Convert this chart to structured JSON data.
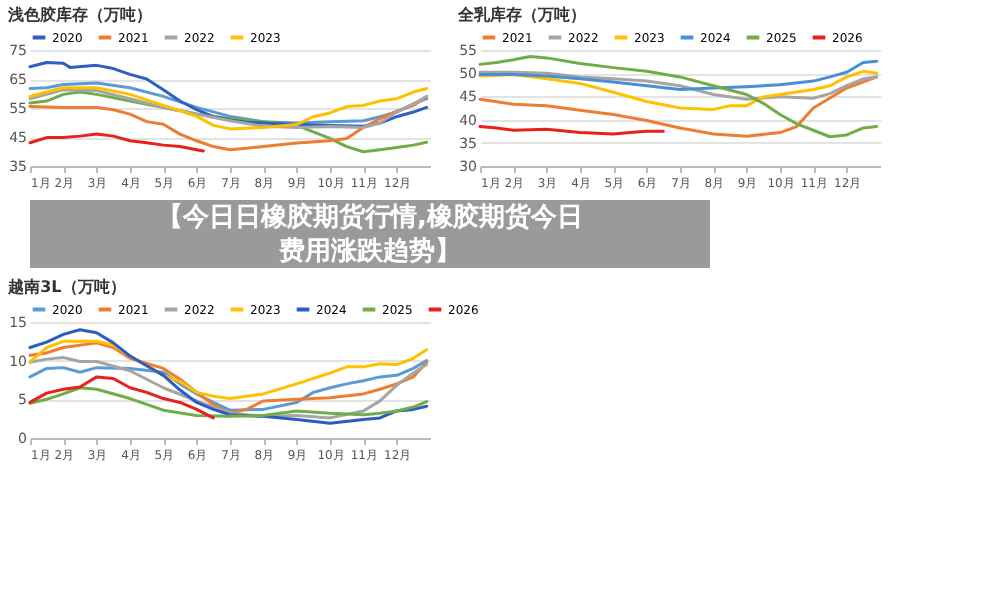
{
  "chart_data": [
    {
      "type": "line",
      "title": "浅色胶库存（万吨）",
      "legend": "top",
      "grid": "y",
      "ylim": [
        35,
        75
      ],
      "yticks": [
        35,
        45,
        55,
        65,
        75
      ],
      "xlim": [
        1,
        13
      ],
      "xticks": [
        {
          "value": 1,
          "label": "1月"
        },
        {
          "value": 2,
          "label": "2月"
        },
        {
          "value": 3,
          "label": "3月"
        },
        {
          "value": 4,
          "label": "4月"
        },
        {
          "value": 5,
          "label": "5月"
        },
        {
          "value": 6,
          "label": "6月"
        },
        {
          "value": 7,
          "label": "7月"
        },
        {
          "value": 8,
          "label": "8月"
        },
        {
          "value": 9,
          "label": "9月"
        },
        {
          "value": 10,
          "label": "10月"
        },
        {
          "value": 11,
          "label": "11月"
        },
        {
          "value": 12,
          "label": "12月"
        }
      ],
      "series": [
        {
          "name": "2020",
          "color": "#2e5fc1",
          "x": [
            1,
            1.5,
            2,
            2.2,
            3,
            3.5,
            4,
            4.5,
            5,
            5.5,
            6,
            6.5,
            7,
            7.5,
            8,
            9,
            10,
            11,
            11.5,
            12,
            12.5,
            12.9
          ],
          "values": [
            69.2,
            70.7,
            70.4,
            69,
            69.7,
            68.6,
            66.6,
            65,
            61.3,
            57.4,
            54.4,
            52,
            50.9,
            50.1,
            49.8,
            49.3,
            49,
            48.7,
            49.8,
            52,
            53.6,
            55.2
          ]
        },
        {
          "name": "2021",
          "color": "#ed7d31",
          "x": [
            1,
            2,
            3,
            3.5,
            4,
            4.5,
            5,
            5.5,
            6,
            6.5,
            7,
            7.5,
            8,
            9,
            10,
            10.5,
            11,
            11.5,
            12,
            12.5,
            12.9
          ],
          "values": [
            55.5,
            55.2,
            55.2,
            54.4,
            52.9,
            50.3,
            49.4,
            46,
            43.7,
            41.7,
            40.6,
            41.1,
            41.7,
            42.9,
            43.7,
            44.5,
            48.3,
            51.3,
            53.9,
            55.9,
            59
          ]
        },
        {
          "name": "2022",
          "color": "#a5a5a5",
          "x": [
            1,
            2,
            3,
            4,
            5,
            6,
            7,
            8,
            9,
            10,
            11,
            11.5,
            12,
            12.5,
            12.9
          ],
          "values": [
            58.2,
            61.3,
            61,
            58.2,
            55.2,
            52.9,
            50.6,
            48.7,
            48.3,
            48.6,
            48.3,
            49.8,
            53.6,
            56.4,
            59
          ]
        },
        {
          "name": "2023",
          "color": "#ffc000",
          "x": [
            1,
            1.5,
            2,
            3,
            4,
            5,
            6,
            6.5,
            7,
            8,
            9,
            9.5,
            10,
            10.5,
            11,
            11.5,
            12,
            12.5,
            12.9
          ],
          "values": [
            59,
            60.5,
            62,
            62,
            59.7,
            55.9,
            52.1,
            49,
            47.8,
            48.3,
            49.3,
            52,
            53.3,
            55.5,
            55.9,
            57.4,
            58.2,
            60.5,
            61.7
          ]
        },
        {
          "color": "#5b9bd5",
          "x": [
            1,
            1.5,
            2,
            3,
            4,
            5,
            6,
            7,
            8,
            9,
            10,
            11,
            11.5,
            12,
            12.5,
            12.9
          ],
          "values": [
            61.7,
            62,
            63.1,
            63.6,
            62,
            59,
            55.2,
            52.1,
            50.3,
            49.8,
            50.3,
            50.6,
            52,
            53.6,
            56.4,
            58.2
          ]
        },
        {
          "color": "#70ad47",
          "x": [
            1,
            1.5,
            2,
            2.5,
            3,
            4,
            5,
            6,
            7,
            8,
            9,
            9.5,
            10,
            10.5,
            11,
            11.5,
            12,
            12.5,
            12.9
          ],
          "values": [
            56.7,
            57.4,
            59.7,
            60.5,
            59.7,
            57.4,
            55.2,
            52.9,
            51.3,
            50.3,
            49,
            46.8,
            44.5,
            41.7,
            39.9,
            40.6,
            41.4,
            42.2,
            43.2
          ]
        },
        {
          "color": "#e8211d",
          "x": [
            1,
            1.5,
            2,
            2.5,
            3,
            3.5,
            4,
            4.5,
            5,
            5.5,
            6,
            6.2
          ],
          "values": [
            43,
            44.8,
            44.8,
            45.3,
            46,
            45.3,
            43.7,
            43,
            42.2,
            41.7,
            40.6,
            40.2
          ]
        }
      ]
    },
    {
      "type": "line",
      "title": "全乳库存（万吨）",
      "legend": "top",
      "grid": "y",
      "ylim": [
        30,
        55
      ],
      "yticks": [
        30,
        35,
        40,
        45,
        50,
        55
      ],
      "xlim": [
        1,
        13
      ],
      "xticks": [
        {
          "value": 1,
          "label": "1月"
        },
        {
          "value": 2,
          "label": "2月"
        },
        {
          "value": 3,
          "label": "3月"
        },
        {
          "value": 4,
          "label": "4月"
        },
        {
          "value": 5,
          "label": "5月"
        },
        {
          "value": 6,
          "label": "6月"
        },
        {
          "value": 7,
          "label": "7月"
        },
        {
          "value": 8,
          "label": "8月"
        },
        {
          "value": 9,
          "label": "9月"
        },
        {
          "value": 10,
          "label": "10月"
        },
        {
          "value": 11,
          "label": "11月"
        },
        {
          "value": 12,
          "label": "12月"
        }
      ],
      "series": [
        {
          "name": "2021",
          "color": "#ed7d31",
          "x": [
            1,
            2,
            3,
            4,
            5,
            6,
            7,
            8,
            9,
            10,
            10.5,
            11,
            12,
            12.9
          ],
          "values": [
            44.4,
            43.3,
            43,
            42,
            41.1,
            39.8,
            38.2,
            36.9,
            36.4,
            37.2,
            38.5,
            42.5,
            46.8,
            49.2
          ]
        },
        {
          "name": "2022",
          "color": "#a5a5a5",
          "x": [
            1,
            2,
            3,
            4,
            5,
            6,
            7,
            8,
            9,
            10,
            11,
            11.5,
            12,
            12.5,
            12.9
          ],
          "values": [
            50.2,
            50.2,
            50,
            49.2,
            48.8,
            48.3,
            47.3,
            45.4,
            44.4,
            44.9,
            44.6,
            45.6,
            47.3,
            48.8,
            49.2
          ]
        },
        {
          "name": "2023",
          "color": "#ffc000",
          "x": [
            1,
            2,
            3,
            4,
            5,
            6,
            7,
            8,
            8.5,
            9,
            9.5,
            10,
            11,
            11.5,
            12,
            12.5,
            12.9
          ],
          "values": [
            49.4,
            49.7,
            48.8,
            47.8,
            45.9,
            43.9,
            42.5,
            42.2,
            43,
            43,
            44.9,
            45.4,
            46.5,
            47.3,
            49.2,
            50.4,
            50
          ]
        },
        {
          "name": "2024",
          "color": "#4a8fd4",
          "x": [
            1,
            2,
            3,
            4,
            5,
            6,
            7,
            8,
            9,
            10,
            11,
            11.5,
            12,
            12.5,
            12.9
          ],
          "values": [
            49.7,
            49.7,
            49.4,
            48.8,
            48.1,
            47.3,
            46.5,
            46.8,
            47.1,
            47.5,
            48.3,
            49.2,
            50.2,
            52.3,
            52.6
          ]
        },
        {
          "name": "2025",
          "color": "#70ad47",
          "x": [
            1,
            1.5,
            2,
            2.5,
            3,
            4,
            5,
            6,
            7,
            8,
            9,
            9.5,
            10,
            10.5,
            11,
            11.5,
            12,
            12.5,
            12.9
          ],
          "values": [
            51.9,
            52.3,
            52.9,
            53.6,
            53.3,
            52.1,
            51.2,
            50.4,
            49.2,
            47.3,
            45.4,
            43.5,
            41.1,
            39.1,
            37.7,
            36.3,
            36.7,
            38.2,
            38.5
          ]
        },
        {
          "name": "2026",
          "color": "#e8211d",
          "x": [
            1,
            1.5,
            2,
            3,
            4,
            5,
            5.5,
            6,
            6.5
          ],
          "values": [
            38.5,
            38.2,
            37.7,
            37.9,
            37.2,
            36.9,
            37.2,
            37.5,
            37.5
          ]
        }
      ]
    },
    {
      "type": "other",
      "title": "【今日日橡胶期货行情,橡胶期货今日费用涨跌趋势】"
    },
    {
      "type": "line",
      "title": "越南3L（万吨）",
      "legend": "top",
      "grid": "y",
      "ylim": [
        0,
        15
      ],
      "yticks": [
        0,
        5,
        10,
        15
      ],
      "xlim": [
        1,
        13
      ],
      "xticks": [
        {
          "value": 1,
          "label": "1月"
        },
        {
          "value": 2,
          "label": "2月"
        },
        {
          "value": 3,
          "label": "3月"
        },
        {
          "value": 4,
          "label": "4月"
        },
        {
          "value": 5,
          "label": "5月"
        },
        {
          "value": 6,
          "label": "6月"
        },
        {
          "value": 7,
          "label": "7月"
        },
        {
          "value": 8,
          "label": "8月"
        },
        {
          "value": 9,
          "label": "9月"
        },
        {
          "value": 10,
          "label": "10月"
        },
        {
          "value": 11,
          "label": "11月"
        },
        {
          "value": 12,
          "label": "12月"
        }
      ],
      "series": [
        {
          "name": "2020",
          "color": "#5b9bd5",
          "x": [
            1,
            1.5,
            2,
            2.5,
            3,
            4,
            5,
            5.5,
            6,
            6.5,
            7,
            8,
            9,
            9.5,
            10,
            10.5,
            11,
            11.5,
            12,
            12.5,
            12.9
          ],
          "values": [
            7.9,
            9,
            9.1,
            8.5,
            9.1,
            9,
            8.5,
            7,
            5.7,
            4.6,
            3.6,
            3.7,
            4.6,
            5.9,
            6.5,
            7,
            7.4,
            7.9,
            8.1,
            9,
            10
          ]
        },
        {
          "name": "2021",
          "color": "#ed7d31",
          "x": [
            1,
            1.5,
            2,
            3,
            3.5,
            4,
            5,
            5.5,
            6,
            6.5,
            7,
            7.5,
            8,
            9,
            10,
            11,
            11.5,
            12,
            12.5,
            12.9
          ],
          "values": [
            10.7,
            11,
            11.7,
            12.3,
            11.7,
            10.3,
            9,
            7.6,
            5.9,
            4.3,
            3.2,
            3.7,
            4.8,
            5,
            5.2,
            5.7,
            6.3,
            7,
            7.9,
            9.8
          ]
        },
        {
          "name": "2022",
          "color": "#a5a5a5",
          "x": [
            1,
            1.5,
            2,
            2.5,
            3,
            4,
            5,
            6,
            7,
            8,
            9,
            10,
            11,
            11.5,
            12,
            12.5,
            12.9
          ],
          "values": [
            9.8,
            10.2,
            10.4,
            9.9,
            9.9,
            8.7,
            6.5,
            4.8,
            3.2,
            2.8,
            2.9,
            2.6,
            3.5,
            4.8,
            6.8,
            8.4,
            9.5
          ]
        },
        {
          "name": "2023",
          "color": "#ffc000",
          "x": [
            1,
            1.5,
            2,
            3,
            3.5,
            4,
            5,
            5.5,
            6,
            6.5,
            7,
            8,
            9,
            10,
            10.5,
            11,
            11.5,
            12,
            12.5,
            12.9
          ],
          "values": [
            9.8,
            11.7,
            12.5,
            12.5,
            12,
            10.6,
            8.1,
            7.3,
            5.9,
            5.4,
            5.1,
            5.7,
            7,
            8.4,
            9.2,
            9.2,
            9.6,
            9.5,
            10.3,
            11.4
          ]
        },
        {
          "name": "2024",
          "color": "#2a5cc4",
          "x": [
            1,
            1.5,
            2,
            2.5,
            3,
            3.5,
            4,
            5,
            5.5,
            6,
            6.5,
            7,
            8,
            9,
            10,
            11,
            11.5,
            12,
            12.5,
            12.9
          ],
          "values": [
            11.7,
            12.4,
            13.4,
            14,
            13.6,
            12.3,
            10.6,
            8.1,
            6.2,
            4.6,
            3.7,
            3,
            2.8,
            2.4,
            1.9,
            2.4,
            2.6,
            3.5,
            3.7,
            4.1
          ]
        },
        {
          "name": "2025",
          "color": "#70ad47",
          "x": [
            1,
            1.5,
            2,
            2.5,
            3,
            4,
            5,
            6,
            7,
            8,
            9,
            10,
            11,
            11.5,
            12,
            12.5,
            12.9
          ],
          "values": [
            4.5,
            5,
            5.7,
            6.5,
            6.3,
            5.1,
            3.6,
            2.9,
            2.8,
            2.9,
            3.5,
            3.2,
            3,
            3.2,
            3.5,
            4,
            4.7
          ]
        },
        {
          "name": "2026",
          "color": "#e8211d",
          "x": [
            1,
            1.5,
            2,
            2.5,
            3,
            3.5,
            4,
            4.5,
            5,
            5.5,
            6,
            6.5
          ],
          "values": [
            4.6,
            5.8,
            6.3,
            6.6,
            7.9,
            7.7,
            6.5,
            5.9,
            5.1,
            4.6,
            3.7,
            2.6
          ]
        }
      ]
    }
  ]
}
